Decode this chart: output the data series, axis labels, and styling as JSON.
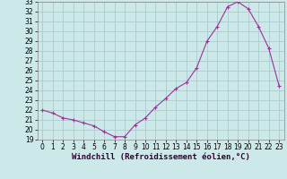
{
  "hours": [
    0,
    1,
    2,
    3,
    4,
    5,
    6,
    7,
    8,
    9,
    10,
    11,
    12,
    13,
    14,
    15,
    16,
    17,
    18,
    19,
    20,
    21,
    22,
    23
  ],
  "values": [
    22.0,
    21.7,
    21.2,
    21.0,
    20.7,
    20.4,
    19.8,
    19.3,
    19.3,
    20.5,
    21.2,
    22.3,
    23.2,
    24.2,
    24.8,
    26.3,
    29.0,
    30.5,
    32.5,
    33.0,
    32.3,
    30.5,
    28.3,
    24.5
  ],
  "line_color": "#993399",
  "marker": "+",
  "marker_size": 3,
  "marker_lw": 0.8,
  "line_width": 0.8,
  "bg_color": "#cce8e8",
  "grid_color": "#aacccc",
  "xlabel": "Windchill (Refroidissement éolien,°C)",
  "ylim": [
    19,
    33
  ],
  "yticks": [
    19,
    20,
    21,
    22,
    23,
    24,
    25,
    26,
    27,
    28,
    29,
    30,
    31,
    32,
    33
  ],
  "xticks": [
    0,
    1,
    2,
    3,
    4,
    5,
    6,
    7,
    8,
    9,
    10,
    11,
    12,
    13,
    14,
    15,
    16,
    17,
    18,
    19,
    20,
    21,
    22,
    23
  ],
  "xtick_labels": [
    "0",
    "1",
    "2",
    "3",
    "4",
    "5",
    "6",
    "7",
    "8",
    "9",
    "10",
    "11",
    "12",
    "13",
    "14",
    "15",
    "16",
    "17",
    "18",
    "19",
    "20",
    "21",
    "22",
    "23"
  ],
  "tick_fontsize": 5.5,
  "xlabel_fontsize": 6.5,
  "spine_color": "#888888"
}
